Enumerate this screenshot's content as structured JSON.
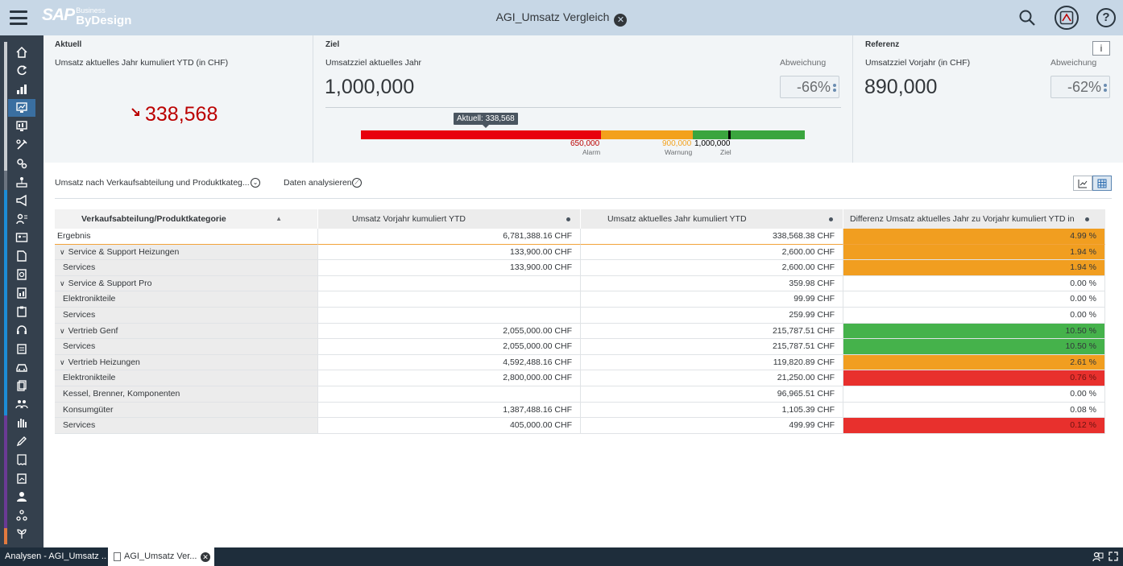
{
  "shell": {
    "brand": "SAP",
    "brand_sub1": "Business",
    "brand_sub2": "ByDesign",
    "title": "AGI_Umsatz Vergleich"
  },
  "kpi": {
    "actual": {
      "label": "Aktuell",
      "sub": "Umsatz aktuelles Jahr kumuliert YTD (in CHF)",
      "value": "338,568",
      "trend": "down"
    },
    "target": {
      "label": "Ziel",
      "sub": "Umsatzziel aktuelles Jahr",
      "value": "1,000,000",
      "dev_label": "Abweichung",
      "dev_value": "-66%"
    },
    "reference": {
      "label": "Referenz",
      "sub": "Umsatzziel Vorjahr (in CHF)",
      "value": "890,000",
      "dev_label": "Abweichung",
      "dev_value": "-62%"
    },
    "bullet": {
      "tooltip": "Aktuell: 338,568",
      "alarm_value": "650,000",
      "alarm_label": "Alarm",
      "warning_value": "900,000",
      "warning_label": "Warnung",
      "goal_value": "1,000,000",
      "goal_label": "Ziel",
      "colors": {
        "red": "#e8000d",
        "orange": "#f3a11c",
        "green": "#3aa53e"
      }
    }
  },
  "toolbar": {
    "view_select": "Umsatz nach Verkaufsabteilung und Produktkateg...",
    "analyze": "Daten analysieren"
  },
  "table": {
    "headers": [
      "Verkaufsabteilung/Produktkategorie",
      "Umsatz Vorjahr kumuliert YTD",
      "Umsatz aktuelles Jahr kumuliert YTD",
      "Differenz Umsatz aktuelles Jahr zu Vorjahr kumuliert YTD in"
    ],
    "rows": [
      {
        "label": "Ergebnis",
        "prev": "6,781,388.16 CHF",
        "cur": "338,568.38 CHF",
        "diff": "4.99 %",
        "color": "orange"
      },
      {
        "label": "Service & Support Heizungen",
        "prev": "133,900.00 CHF",
        "cur": "2,600.00 CHF",
        "diff": "1.94 %",
        "color": "orange"
      },
      {
        "label": "Services",
        "prev": "133,900.00 CHF",
        "cur": "2,600.00 CHF",
        "diff": "1.94 %",
        "color": "orange"
      },
      {
        "label": "Service & Support Pro",
        "prev": "",
        "cur": "359.98 CHF",
        "diff": "0.00 %",
        "color": "none"
      },
      {
        "label": "Elektronikteile",
        "prev": "",
        "cur": "99.99 CHF",
        "diff": "0.00 %",
        "color": "none"
      },
      {
        "label": "Services",
        "prev": "",
        "cur": "259.99 CHF",
        "diff": "0.00 %",
        "color": "none"
      },
      {
        "label": "Vertrieb Genf",
        "prev": "2,055,000.00 CHF",
        "cur": "215,787.51 CHF",
        "diff": "10.50 %",
        "color": "green"
      },
      {
        "label": "Services",
        "prev": "2,055,000.00 CHF",
        "cur": "215,787.51 CHF",
        "diff": "10.50 %",
        "color": "green"
      },
      {
        "label": "Vertrieb Heizungen",
        "prev": "4,592,488.16 CHF",
        "cur": "119,820.89 CHF",
        "diff": "2.61 %",
        "color": "orange"
      },
      {
        "label": "Elektronikteile",
        "prev": "2,800,000.00 CHF",
        "cur": "21,250.00 CHF",
        "diff": "0.76 %",
        "color": "red"
      },
      {
        "label": "Kessel, Brenner, Komponenten",
        "prev": "",
        "cur": "96,965.51 CHF",
        "diff": "0.00 %",
        "color": "none"
      },
      {
        "label": "Konsumgüter",
        "prev": "1,387,488.16 CHF",
        "cur": "1,105.39 CHF",
        "diff": "0.08 %",
        "color": "none"
      },
      {
        "label": "Services",
        "prev": "405,000.00 CHF",
        "cur": "499.99 CHF",
        "diff": "0.12 %",
        "color": "red"
      }
    ]
  },
  "taskbar": {
    "task1": "Analysen - AGI_Umsatz ...",
    "task2": "AGI_Umsatz Ver..."
  }
}
